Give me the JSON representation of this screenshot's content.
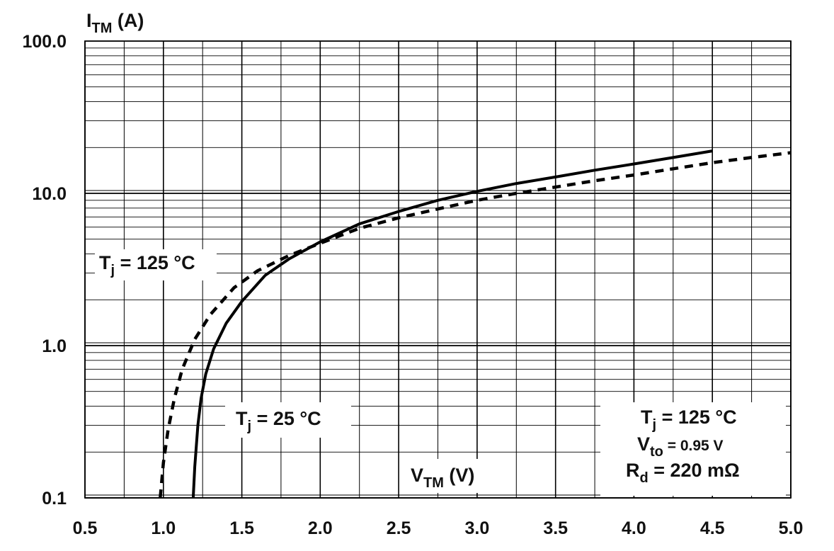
{
  "chart_data": {
    "type": "line",
    "ylabel": {
      "main": "I",
      "sub": "TM",
      "unit": " (A)"
    },
    "xlabel": {
      "main": "V",
      "sub": "TM",
      "unit": " (V)"
    },
    "xlim": [
      0.5,
      5.0
    ],
    "ylim": [
      0.1,
      100.0
    ],
    "yscale": "log",
    "grid": true,
    "x_ticks": [
      "0.5",
      "1.0",
      "1.5",
      "2.0",
      "2.5",
      "3.0",
      "3.5",
      "4.0",
      "4.5",
      "5.0"
    ],
    "y_ticks": [
      {
        "value": 0.1,
        "label": "0.1"
      },
      {
        "value": 1.0,
        "label": "1.0"
      },
      {
        "value": 10.0,
        "label": "10.0"
      },
      {
        "value": 100.0,
        "label": "100.0"
      }
    ],
    "series": [
      {
        "style": "solid",
        "x": [
          1.19,
          1.2,
          1.22,
          1.24,
          1.27,
          1.32,
          1.4,
          1.5,
          1.65,
          1.8,
          2.0,
          2.25,
          2.5,
          2.75,
          3.0,
          3.25,
          3.5,
          3.75,
          4.0,
          4.25,
          4.5
        ],
        "y": [
          0.1,
          0.16,
          0.3,
          0.45,
          0.65,
          0.95,
          1.4,
          1.95,
          2.9,
          3.7,
          4.8,
          6.3,
          7.6,
          9.0,
          10.3,
          11.6,
          12.8,
          14.2,
          15.6,
          17.2,
          19.0
        ]
      },
      {
        "style": "dashed",
        "x": [
          0.98,
          1.0,
          1.03,
          1.07,
          1.12,
          1.2,
          1.3,
          1.45,
          1.6,
          1.8,
          2.0,
          2.25,
          2.5,
          2.75,
          3.0,
          3.25,
          3.5,
          3.75,
          4.0,
          4.25,
          4.5,
          4.75,
          5.0
        ],
        "y": [
          0.1,
          0.17,
          0.28,
          0.45,
          0.7,
          1.1,
          1.6,
          2.4,
          3.1,
          3.9,
          4.7,
          5.9,
          6.9,
          7.9,
          9.0,
          10.0,
          11.0,
          12.1,
          13.2,
          14.5,
          15.9,
          17.2,
          18.5
        ]
      }
    ],
    "annotations": {
      "tj125": {
        "main": "T",
        "sub": "j",
        "rest": " = 125 °C"
      },
      "tj25": {
        "main": "T",
        "sub": "j",
        "rest": " = 25 °C"
      },
      "params": [
        {
          "main": "T",
          "sub": "j",
          "rest": " = 125 °C"
        },
        {
          "main": "V",
          "sub": "to",
          "rest": " = 0.95 V"
        },
        {
          "main": "R",
          "sub": "d",
          "rest": " = 220 mΩ"
        }
      ]
    }
  }
}
